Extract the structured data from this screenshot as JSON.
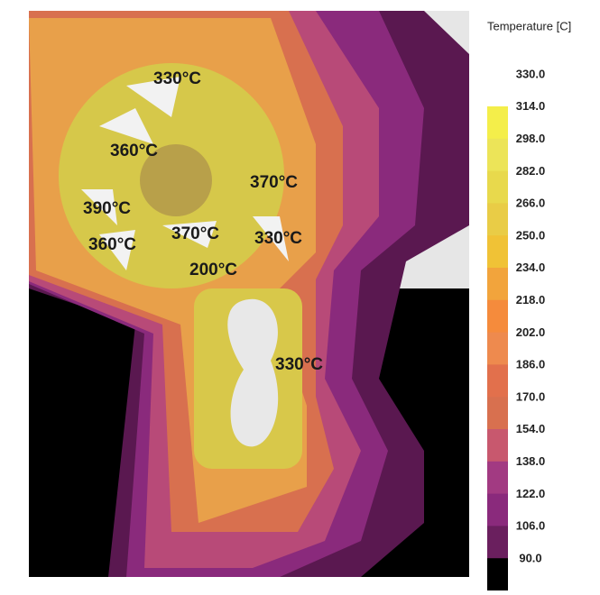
{
  "image": {
    "annotations": [
      "330°C",
      "360°C",
      "370°C",
      "390°C",
      "370°C",
      "330°C",
      "360°C",
      "200°C",
      "330°C"
    ]
  },
  "legend": {
    "title": "Temperature [C]",
    "labels": [
      "330.0",
      "314.0",
      "298.0",
      "282.0",
      "266.0",
      "250.0",
      "234.0",
      "218.0",
      "202.0",
      "186.0",
      "170.0",
      "154.0",
      "138.0",
      "122.0",
      "106.0",
      "90.0"
    ],
    "colors": [
      "#f4ee4a",
      "#ece458",
      "#e8d94c",
      "#e9cc46",
      "#f0c236",
      "#f2a43c",
      "#f58b3c",
      "#ee8a4e",
      "#e2704c",
      "#d8704f",
      "#c8586e",
      "#a23a82",
      "#8a2a7c",
      "#6a1f5e",
      "#000000"
    ]
  }
}
